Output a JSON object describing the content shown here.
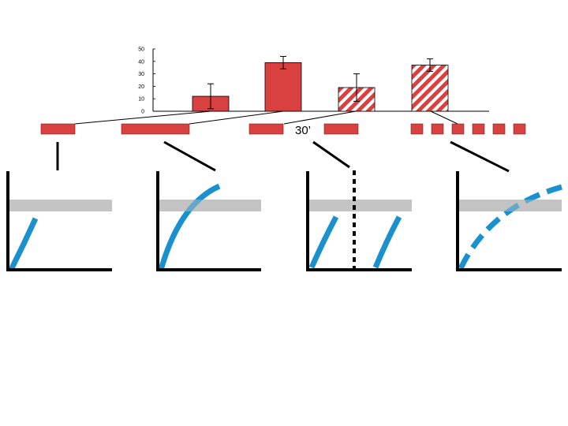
{
  "colors": {
    "bar_red": "#d94040",
    "curve_blue": "#1a90cc",
    "threshold_gray": "#c4c4c4",
    "axis_black": "#000000",
    "stripe_white": "#ffffff"
  },
  "chart_data": {
    "type": "bar",
    "ylim": [
      0,
      50
    ],
    "yticks": [
      "0",
      "10",
      "20",
      "30",
      "40",
      "50"
    ],
    "series": [
      {
        "values": [
          12,
          39,
          19,
          37
        ],
        "errors": [
          10,
          5,
          11,
          5
        ],
        "fill": [
          "solid",
          "solid",
          "half-striped",
          "striped"
        ]
      }
    ]
  },
  "protocol": {
    "interval_label": "30’",
    "groups": [
      {
        "pattern": "single short pulse"
      },
      {
        "pattern": "single long pulse"
      },
      {
        "pattern": "two pulses separated by interval"
      },
      {
        "pattern": "six repeated short pulses"
      }
    ]
  },
  "panels": [
    {
      "curve": "solid, stops below threshold",
      "crosses_threshold": false
    },
    {
      "curve": "solid, crosses threshold",
      "crosses_threshold": true
    },
    {
      "curve": "two solid rises split by dotted line",
      "crosses_threshold": false
    },
    {
      "curve": "dashed, crosses threshold",
      "crosses_threshold": true
    }
  ]
}
